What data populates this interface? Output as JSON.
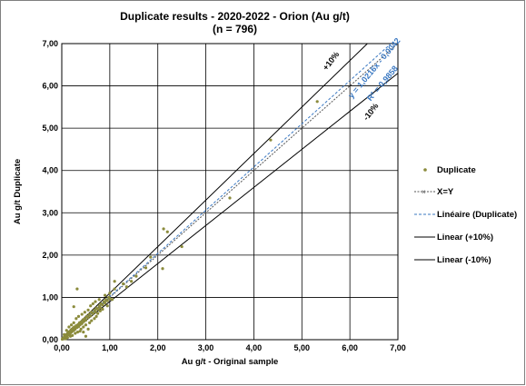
{
  "chart_data": {
    "type": "scatter",
    "title": "Duplicate results - 2020-2022 - Orion (Au g/t)",
    "subtitle": "(n = 796)",
    "xlabel": "Au g/t - Original sample",
    "ylabel": "Au g/t Duplicate",
    "xlim": [
      0,
      7
    ],
    "ylim": [
      0,
      7
    ],
    "x_ticks": [
      "0,00",
      "1,00",
      "2,00",
      "3,00",
      "4,00",
      "5,00",
      "6,00",
      "7,00"
    ],
    "y_ticks": [
      "0,00",
      "1,00",
      "2,00",
      "3,00",
      "4,00",
      "5,00",
      "6,00",
      "7,00"
    ],
    "grid": true,
    "legend_position": "right",
    "series": [
      {
        "name": "Duplicate",
        "kind": "points",
        "color": "#8b8b3c",
        "points": [
          [
            0.01,
            0.01
          ],
          [
            0.02,
            0.03
          ],
          [
            0.03,
            0.02
          ],
          [
            0.04,
            0.05
          ],
          [
            0.05,
            0.04
          ],
          [
            0.06,
            0.08
          ],
          [
            0.07,
            0.06
          ],
          [
            0.08,
            0.1
          ],
          [
            0.09,
            0.07
          ],
          [
            0.1,
            0.12
          ],
          [
            0.11,
            0.09
          ],
          [
            0.12,
            0.15
          ],
          [
            0.13,
            0.11
          ],
          [
            0.14,
            0.18
          ],
          [
            0.15,
            0.14
          ],
          [
            0.16,
            0.12
          ],
          [
            0.17,
            0.2
          ],
          [
            0.18,
            0.16
          ],
          [
            0.19,
            0.23
          ],
          [
            0.2,
            0.18
          ],
          [
            0.21,
            0.25
          ],
          [
            0.22,
            0.2
          ],
          [
            0.24,
            0.28
          ],
          [
            0.25,
            0.22
          ],
          [
            0.26,
            0.3
          ],
          [
            0.28,
            0.25
          ],
          [
            0.3,
            0.33
          ],
          [
            0.32,
            0.29
          ],
          [
            0.34,
            0.36
          ],
          [
            0.35,
            0.31
          ],
          [
            0.37,
            0.4
          ],
          [
            0.38,
            0.35
          ],
          [
            0.4,
            0.42
          ],
          [
            0.42,
            0.38
          ],
          [
            0.44,
            0.47
          ],
          [
            0.46,
            0.43
          ],
          [
            0.48,
            0.5
          ],
          [
            0.5,
            0.46
          ],
          [
            0.52,
            0.55
          ],
          [
            0.55,
            0.52
          ],
          [
            0.57,
            0.6
          ],
          [
            0.6,
            0.56
          ],
          [
            0.62,
            0.65
          ],
          [
            0.65,
            0.62
          ],
          [
            0.68,
            0.7
          ],
          [
            0.7,
            0.66
          ],
          [
            0.72,
            0.75
          ],
          [
            0.75,
            0.72
          ],
          [
            0.78,
            0.8
          ],
          [
            0.8,
            0.76
          ],
          [
            0.82,
            0.85
          ],
          [
            0.85,
            0.82
          ],
          [
            0.88,
            0.9
          ],
          [
            0.9,
            0.87
          ],
          [
            0.92,
            0.95
          ],
          [
            0.95,
            0.92
          ],
          [
            0.98,
            1.0
          ],
          [
            1.0,
            0.97
          ],
          [
            0.05,
            0.12
          ],
          [
            0.08,
            0.02
          ],
          [
            0.1,
            0.22
          ],
          [
            0.12,
            0.05
          ],
          [
            0.15,
            0.3
          ],
          [
            0.18,
            0.08
          ],
          [
            0.2,
            0.35
          ],
          [
            0.22,
            0.1
          ],
          [
            0.25,
            0.4
          ],
          [
            0.28,
            0.15
          ],
          [
            0.3,
            0.5
          ],
          [
            0.3,
            0.3
          ],
          [
            0.33,
            0.18
          ],
          [
            0.35,
            0.55
          ],
          [
            0.38,
            0.2
          ],
          [
            0.4,
            0.25
          ],
          [
            0.42,
            0.6
          ],
          [
            0.45,
            0.3
          ],
          [
            0.48,
            0.65
          ],
          [
            0.5,
            0.35
          ],
          [
            0.55,
            0.7
          ],
          [
            0.58,
            0.4
          ],
          [
            0.6,
            0.8
          ],
          [
            0.62,
            0.45
          ],
          [
            0.65,
            0.85
          ],
          [
            0.68,
            0.5
          ],
          [
            0.7,
            0.9
          ],
          [
            0.72,
            0.55
          ],
          [
            0.75,
            0.62
          ],
          [
            0.78,
            0.95
          ],
          [
            0.8,
            0.68
          ],
          [
            0.85,
            0.72
          ],
          [
            0.9,
            1.05
          ],
          [
            0.95,
            0.8
          ],
          [
            1.0,
            1.1
          ],
          [
            1.05,
            0.95
          ],
          [
            1.1,
            1.2
          ],
          [
            0.25,
            0.78
          ],
          [
            0.32,
            1.2
          ],
          [
            0.45,
            0.18
          ],
          [
            0.5,
            0.08
          ],
          [
            0.55,
            0.25
          ],
          [
            1.1,
            1.38
          ],
          [
            1.28,
            1.32
          ],
          [
            1.35,
            1.25
          ],
          [
            1.45,
            1.38
          ],
          [
            1.55,
            1.5
          ],
          [
            1.75,
            1.7
          ],
          [
            1.85,
            1.95
          ],
          [
            2.1,
            1.68
          ],
          [
            2.12,
            2.62
          ],
          [
            2.2,
            2.55
          ],
          [
            2.5,
            2.2
          ],
          [
            3.5,
            3.35
          ],
          [
            4.35,
            4.72
          ],
          [
            5.32,
            5.63
          ]
        ]
      },
      {
        "name": "X=Y",
        "kind": "line",
        "color": "#555555",
        "from": [
          0,
          0
        ],
        "to": [
          7,
          7
        ]
      },
      {
        "name": "Linéaire (Duplicate)",
        "kind": "trend",
        "color": "#3a78c2",
        "slope": 1.0216,
        "intercept": -0.0042
      },
      {
        "name": "Linear (+10%)",
        "kind": "line",
        "color": "#000000",
        "from": [
          0,
          0
        ],
        "to": [
          6.364,
          7
        ]
      },
      {
        "name": "Linear (-10%)",
        "kind": "line",
        "color": "#000000",
        "from": [
          0,
          0
        ],
        "to": [
          7,
          6.3
        ]
      }
    ],
    "annotations": {
      "plus10": "+10%",
      "minus10": "-10%",
      "equation": "y = 1,0216x - 0,0042",
      "r2": "R² = 0,9858"
    }
  }
}
